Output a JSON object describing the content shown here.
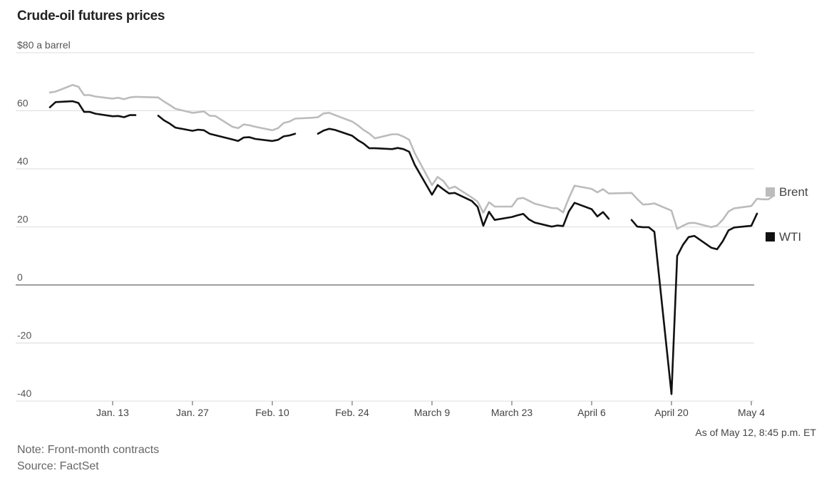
{
  "title": "Crude-oil futures prices",
  "as_of": "As of May 12, 8:45 p.m. ET",
  "note": "Note: Front-month contracts",
  "source": "Source: FactSet",
  "colors": {
    "brent": "#bcbcbc",
    "wti": "#111111",
    "grid": "#dcdcdc",
    "zero": "#666666"
  },
  "chart_data": {
    "type": "line",
    "title": "Crude-oil futures prices",
    "ylim": [
      -40,
      80
    ],
    "yticks": [
      80,
      60,
      40,
      20,
      0,
      -20,
      -40
    ],
    "ytick_labels": [
      "$80 a barrel",
      "60",
      "40",
      "20",
      "0",
      "-20",
      "-40"
    ],
    "grid": true,
    "legend_position": "right",
    "xticks": [
      {
        "date": "2020-01-13",
        "label": "Jan. 13"
      },
      {
        "date": "2020-01-27",
        "label": "Jan. 27"
      },
      {
        "date": "2020-02-10",
        "label": "Feb. 10"
      },
      {
        "date": "2020-02-24",
        "label": "Feb. 24"
      },
      {
        "date": "2020-03-09",
        "label": "March 9"
      },
      {
        "date": "2020-03-23",
        "label": "March 23"
      },
      {
        "date": "2020-04-06",
        "label": "April 6"
      },
      {
        "date": "2020-04-20",
        "label": "April 20"
      },
      {
        "date": "2020-05-04",
        "label": "May 4"
      }
    ],
    "series": [
      {
        "name": "Brent",
        "points": [
          [
            "2020-01-02",
            66.3
          ],
          [
            "2020-01-03",
            66.6
          ],
          [
            "2020-01-06",
            68.9
          ],
          [
            "2020-01-07",
            68.3
          ],
          [
            "2020-01-08",
            65.4
          ],
          [
            "2020-01-09",
            65.4
          ],
          [
            "2020-01-10",
            64.9
          ],
          [
            "2020-01-13",
            64.2
          ],
          [
            "2020-01-14",
            64.5
          ],
          [
            "2020-01-15",
            64.0
          ],
          [
            "2020-01-16",
            64.6
          ],
          [
            "2020-01-17",
            64.8
          ],
          [
            "2020-01-21",
            64.6
          ],
          [
            "2020-01-22",
            63.2
          ],
          [
            "2020-01-23",
            62.0
          ],
          [
            "2020-01-24",
            60.7
          ],
          [
            "2020-01-27",
            59.3
          ],
          [
            "2020-01-28",
            59.5
          ],
          [
            "2020-01-29",
            59.8
          ],
          [
            "2020-01-30",
            58.3
          ],
          [
            "2020-01-31",
            58.2
          ],
          [
            "2020-02-03",
            54.5
          ],
          [
            "2020-02-04",
            54.0
          ],
          [
            "2020-02-05",
            55.3
          ],
          [
            "2020-02-06",
            55.0
          ],
          [
            "2020-02-07",
            54.5
          ],
          [
            "2020-02-10",
            53.3
          ],
          [
            "2020-02-11",
            54.0
          ],
          [
            "2020-02-12",
            55.8
          ],
          [
            "2020-02-13",
            56.3
          ],
          [
            "2020-02-14",
            57.3
          ],
          [
            "2020-02-17",
            57.6
          ],
          [
            "2020-02-18",
            57.8
          ],
          [
            "2020-02-19",
            59.1
          ],
          [
            "2020-02-20",
            59.3
          ],
          [
            "2020-02-21",
            58.5
          ],
          [
            "2020-02-24",
            56.3
          ],
          [
            "2020-02-25",
            55.0
          ],
          [
            "2020-02-26",
            53.4
          ],
          [
            "2020-02-27",
            52.2
          ],
          [
            "2020-02-28",
            50.5
          ],
          [
            "2020-03-02",
            51.9
          ],
          [
            "2020-03-03",
            51.9
          ],
          [
            "2020-03-04",
            51.1
          ],
          [
            "2020-03-05",
            50.0
          ],
          [
            "2020-03-06",
            45.3
          ],
          [
            "2020-03-09",
            34.4
          ],
          [
            "2020-03-10",
            37.2
          ],
          [
            "2020-03-11",
            35.8
          ],
          [
            "2020-03-12",
            33.2
          ],
          [
            "2020-03-13",
            33.9
          ],
          [
            "2020-03-16",
            30.1
          ],
          [
            "2020-03-17",
            28.7
          ],
          [
            "2020-03-18",
            24.9
          ],
          [
            "2020-03-19",
            28.5
          ],
          [
            "2020-03-20",
            27.0
          ],
          [
            "2020-03-23",
            27.0
          ],
          [
            "2020-03-24",
            29.7
          ],
          [
            "2020-03-25",
            30.0
          ],
          [
            "2020-03-26",
            29.0
          ],
          [
            "2020-03-27",
            28.0
          ],
          [
            "2020-03-30",
            26.5
          ],
          [
            "2020-03-31",
            26.4
          ],
          [
            "2020-04-01",
            25.0
          ],
          [
            "2020-04-02",
            29.9
          ],
          [
            "2020-04-03",
            34.2
          ],
          [
            "2020-04-06",
            33.1
          ],
          [
            "2020-04-07",
            31.9
          ],
          [
            "2020-04-08",
            33.0
          ],
          [
            "2020-04-09",
            31.5
          ],
          [
            "2020-04-13",
            31.7
          ],
          [
            "2020-04-14",
            29.6
          ],
          [
            "2020-04-15",
            27.7
          ],
          [
            "2020-04-16",
            27.8
          ],
          [
            "2020-04-17",
            28.1
          ],
          [
            "2020-04-20",
            25.6
          ],
          [
            "2020-04-21",
            19.3
          ],
          [
            "2020-04-22",
            20.4
          ],
          [
            "2020-04-23",
            21.3
          ],
          [
            "2020-04-24",
            21.4
          ],
          [
            "2020-04-27",
            19.9
          ],
          [
            "2020-04-28",
            20.5
          ],
          [
            "2020-04-29",
            22.5
          ],
          [
            "2020-04-30",
            25.3
          ],
          [
            "2020-05-01",
            26.4
          ],
          [
            "2020-05-04",
            27.2
          ],
          [
            "2020-05-05",
            29.7
          ],
          [
            "2020-05-06",
            29.5
          ],
          [
            "2020-05-07",
            29.5
          ],
          [
            "2020-05-08",
            30.9
          ]
        ]
      },
      {
        "name": "WTI",
        "segments": [
          [
            [
              "2020-01-02",
              61.2
            ],
            [
              "2020-01-03",
              63.0
            ],
            [
              "2020-01-06",
              63.3
            ],
            [
              "2020-01-07",
              62.7
            ],
            [
              "2020-01-08",
              59.6
            ],
            [
              "2020-01-09",
              59.6
            ],
            [
              "2020-01-10",
              59.0
            ],
            [
              "2020-01-13",
              58.1
            ],
            [
              "2020-01-14",
              58.2
            ],
            [
              "2020-01-15",
              57.8
            ],
            [
              "2020-01-16",
              58.5
            ],
            [
              "2020-01-17",
              58.5
            ]
          ],
          [
            [
              "2020-01-21",
              58.3
            ],
            [
              "2020-01-22",
              56.7
            ],
            [
              "2020-01-23",
              55.6
            ],
            [
              "2020-01-24",
              54.2
            ],
            [
              "2020-01-27",
              53.1
            ],
            [
              "2020-01-28",
              53.5
            ],
            [
              "2020-01-29",
              53.3
            ],
            [
              "2020-01-30",
              52.1
            ],
            [
              "2020-01-31",
              51.6
            ],
            [
              "2020-02-03",
              50.1
            ],
            [
              "2020-02-04",
              49.6
            ],
            [
              "2020-02-05",
              50.8
            ],
            [
              "2020-02-06",
              50.9
            ],
            [
              "2020-02-07",
              50.3
            ],
            [
              "2020-02-10",
              49.6
            ],
            [
              "2020-02-11",
              50.0
            ],
            [
              "2020-02-12",
              51.2
            ],
            [
              "2020-02-13",
              51.5
            ],
            [
              "2020-02-14",
              52.1
            ]
          ],
          [
            [
              "2020-02-18",
              52.1
            ],
            [
              "2020-02-19",
              53.2
            ],
            [
              "2020-02-20",
              53.8
            ],
            [
              "2020-02-21",
              53.4
            ],
            [
              "2020-02-24",
              51.4
            ],
            [
              "2020-02-25",
              49.9
            ],
            [
              "2020-02-26",
              48.7
            ],
            [
              "2020-02-27",
              47.1
            ],
            [
              "2020-02-28",
              47.1
            ],
            [
              "2020-03-02",
              46.8
            ],
            [
              "2020-03-03",
              47.2
            ],
            [
              "2020-03-04",
              46.8
            ],
            [
              "2020-03-05",
              45.9
            ],
            [
              "2020-03-06",
              41.3
            ],
            [
              "2020-03-09",
              31.1
            ],
            [
              "2020-03-10",
              34.4
            ],
            [
              "2020-03-11",
              32.9
            ],
            [
              "2020-03-12",
              31.5
            ],
            [
              "2020-03-13",
              31.7
            ],
            [
              "2020-03-16",
              28.9
            ],
            [
              "2020-03-17",
              26.9
            ],
            [
              "2020-03-18",
              20.4
            ],
            [
              "2020-03-19",
              25.2
            ],
            [
              "2020-03-20",
              22.4
            ],
            [
              "2020-03-23",
              23.4
            ],
            [
              "2020-03-24",
              24.0
            ],
            [
              "2020-03-25",
              24.5
            ],
            [
              "2020-03-26",
              22.6
            ],
            [
              "2020-03-27",
              21.5
            ],
            [
              "2020-03-30",
              20.1
            ],
            [
              "2020-03-31",
              20.5
            ],
            [
              "2020-04-01",
              20.3
            ],
            [
              "2020-04-02",
              25.3
            ],
            [
              "2020-04-03",
              28.3
            ],
            [
              "2020-04-06",
              26.1
            ],
            [
              "2020-04-07",
              23.6
            ],
            [
              "2020-04-08",
              25.1
            ],
            [
              "2020-04-09",
              22.8
            ]
          ],
          [
            [
              "2020-04-13",
              22.4
            ],
            [
              "2020-04-14",
              20.1
            ],
            [
              "2020-04-15",
              19.9
            ],
            [
              "2020-04-16",
              19.9
            ],
            [
              "2020-04-17",
              18.3
            ],
            [
              "2020-04-20",
              -37.6
            ],
            [
              "2020-04-21",
              10.0
            ],
            [
              "2020-04-22",
              13.8
            ],
            [
              "2020-04-23",
              16.5
            ],
            [
              "2020-04-24",
              16.9
            ],
            [
              "2020-04-27",
              12.8
            ],
            [
              "2020-04-28",
              12.3
            ],
            [
              "2020-04-29",
              15.1
            ],
            [
              "2020-04-30",
              18.8
            ],
            [
              "2020-05-01",
              19.8
            ],
            [
              "2020-05-04",
              20.4
            ],
            [
              "2020-05-05",
              24.6
            ]
          ]
        ]
      }
    ]
  }
}
